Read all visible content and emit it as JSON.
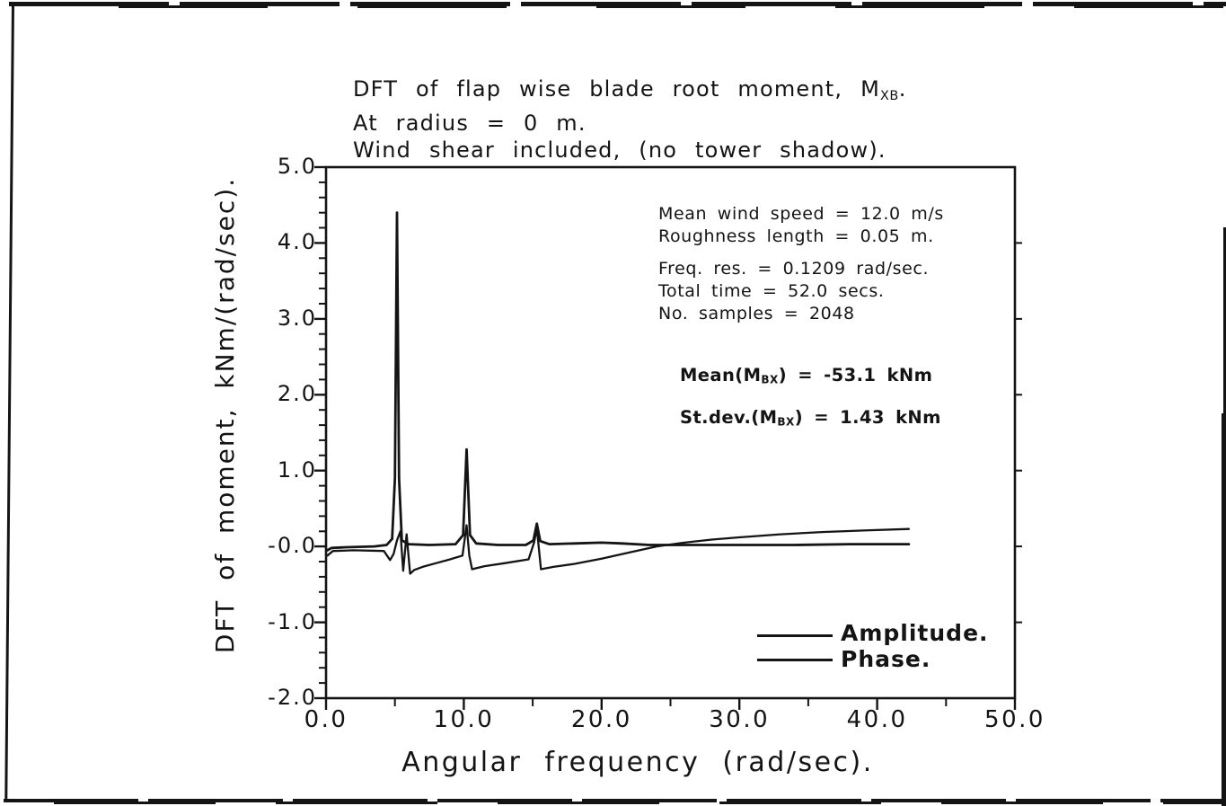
{
  "page": {
    "background": "#ffffff",
    "ink": "#141414"
  },
  "chart_data": {
    "type": "line",
    "title_lines": [
      {
        "pre": "DFT of flap wise blade root moment, M",
        "sub": "XB",
        "post": "."
      },
      {
        "pre": "At radius = 0 m.",
        "sub": "",
        "post": ""
      },
      {
        "pre": "Wind shear included, (no tower shadow).",
        "sub": "",
        "post": ""
      }
    ],
    "xlabel": "Angular frequency (rad/sec).",
    "ylabel": "DFT of moment, kNm/(rad/sec).",
    "xlim": [
      0,
      50
    ],
    "ylim": [
      -2,
      5
    ],
    "grid": false,
    "x_ticks": [
      {
        "v": 0,
        "label": "0.0"
      },
      {
        "v": 10,
        "label": "10.0"
      },
      {
        "v": 20,
        "label": "20.0"
      },
      {
        "v": 30,
        "label": "30.0"
      },
      {
        "v": 40,
        "label": "40.0"
      },
      {
        "v": 50,
        "label": "50.0"
      }
    ],
    "x_minor_ticks": [
      5,
      15,
      25,
      35,
      45
    ],
    "y_ticks": [
      {
        "v": 5,
        "label": "5.0"
      },
      {
        "v": 4,
        "label": "4.0"
      },
      {
        "v": 3,
        "label": "3.0"
      },
      {
        "v": 2,
        "label": "2.0"
      },
      {
        "v": 1,
        "label": "1.0"
      },
      {
        "v": 0,
        "label": "-0.0"
      },
      {
        "v": -1,
        "label": "-1.0"
      },
      {
        "v": -2,
        "label": "-2.0"
      }
    ],
    "y_minor_step": 0.2,
    "annotations": {
      "block1": [
        "Mean wind speed = 12.0 m/s",
        "Roughness length = 0.05 m."
      ],
      "block2": [
        "Freq. res. = 0.1209 rad/sec.",
        "Total time = 52.0 secs.",
        "No. samples = 2048"
      ],
      "mean": {
        "pre": "Mean(M",
        "sub": "BX",
        "post": ") = -53.1 kNm"
      },
      "stdev": {
        "pre": "St.dev.(M",
        "sub": "BX",
        "post": ") = 1.43 kNm"
      }
    },
    "legend": {
      "position": "inside lower right",
      "items": [
        {
          "label": "Amplitude."
        },
        {
          "label": "Phase."
        }
      ]
    },
    "series": [
      {
        "name": "Amplitude",
        "points": [
          [
            0.1,
            -0.05
          ],
          [
            0.4,
            -0.02
          ],
          [
            1.5,
            -0.01
          ],
          [
            3.5,
            0.0
          ],
          [
            4.4,
            0.02
          ],
          [
            4.8,
            0.1
          ],
          [
            5.0,
            0.9
          ],
          [
            5.15,
            4.4
          ],
          [
            5.3,
            0.9
          ],
          [
            5.5,
            0.08
          ],
          [
            6.0,
            0.03
          ],
          [
            7.5,
            0.02
          ],
          [
            9.4,
            0.03
          ],
          [
            9.95,
            0.15
          ],
          [
            10.2,
            1.28
          ],
          [
            10.45,
            0.15
          ],
          [
            10.9,
            0.04
          ],
          [
            12.5,
            0.02
          ],
          [
            14.5,
            0.02
          ],
          [
            15.05,
            0.08
          ],
          [
            15.3,
            0.3
          ],
          [
            15.55,
            0.07
          ],
          [
            16.2,
            0.03
          ],
          [
            18.0,
            0.04
          ],
          [
            20.0,
            0.05
          ],
          [
            21.5,
            0.04
          ],
          [
            23.5,
            0.02
          ],
          [
            26.0,
            0.02
          ],
          [
            30.0,
            0.02
          ],
          [
            34.0,
            0.02
          ],
          [
            38.0,
            0.03
          ],
          [
            42.3,
            0.03
          ]
        ]
      },
      {
        "name": "Phase",
        "points": [
          [
            0.1,
            -0.12
          ],
          [
            0.5,
            -0.06
          ],
          [
            2.0,
            -0.05
          ],
          [
            4.2,
            -0.06
          ],
          [
            4.65,
            -0.18
          ],
          [
            4.9,
            -0.1
          ],
          [
            5.15,
            0.08
          ],
          [
            5.4,
            0.2
          ],
          [
            5.6,
            -0.32
          ],
          [
            5.85,
            0.16
          ],
          [
            6.1,
            -0.36
          ],
          [
            6.4,
            -0.31
          ],
          [
            7.0,
            -0.27
          ],
          [
            8.0,
            -0.22
          ],
          [
            9.0,
            -0.17
          ],
          [
            9.9,
            -0.12
          ],
          [
            10.2,
            0.28
          ],
          [
            10.4,
            -0.12
          ],
          [
            10.6,
            -0.3
          ],
          [
            11.5,
            -0.26
          ],
          [
            13.0,
            -0.22
          ],
          [
            14.7,
            -0.17
          ],
          [
            15.1,
            0.05
          ],
          [
            15.3,
            0.24
          ],
          [
            15.6,
            -0.3
          ],
          [
            16.5,
            -0.27
          ],
          [
            18.0,
            -0.23
          ],
          [
            20.0,
            -0.16
          ],
          [
            22.0,
            -0.08
          ],
          [
            24.0,
            0.0
          ],
          [
            26.0,
            0.05
          ],
          [
            28.0,
            0.09
          ],
          [
            30.0,
            0.12
          ],
          [
            33.0,
            0.16
          ],
          [
            36.0,
            0.19
          ],
          [
            39.0,
            0.21
          ],
          [
            42.3,
            0.23
          ]
        ]
      }
    ]
  }
}
